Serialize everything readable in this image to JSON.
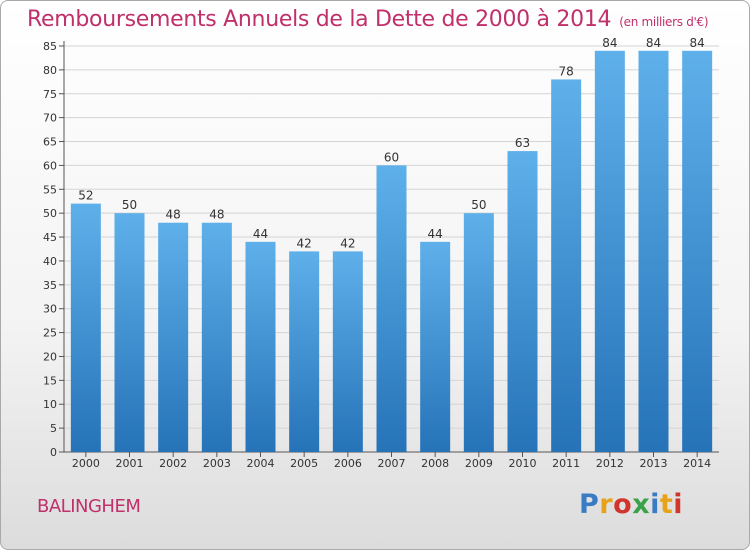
{
  "header": {
    "title": "Remboursements Annuels de la Dette de 2000 à 2014",
    "subtitle": "(en milliers d'€)"
  },
  "footer": {
    "place": "BALINGHEM",
    "logo": "Proxiti",
    "logo_colors": [
      "#3a7cc4",
      "#e8a21a",
      "#d2352b",
      "#3aa24a",
      "#3a7cc4",
      "#e8a21a",
      "#d2352b"
    ]
  },
  "chart_data": {
    "type": "bar",
    "categories": [
      "2000",
      "2001",
      "2002",
      "2003",
      "2004",
      "2005",
      "2006",
      "2007",
      "2008",
      "2009",
      "2010",
      "2011",
      "2012",
      "2013",
      "2014"
    ],
    "values": [
      52,
      50,
      48,
      48,
      44,
      42,
      42,
      60,
      44,
      50,
      63,
      78,
      84,
      84,
      84
    ],
    "ylim": [
      0,
      85
    ],
    "yticks": [
      0,
      5,
      10,
      15,
      20,
      25,
      30,
      35,
      40,
      45,
      50,
      55,
      60,
      65,
      70,
      75,
      80,
      85
    ],
    "grid": true,
    "bar_color_top": "#5eb0ea",
    "bar_color_bottom": "#2673b8"
  }
}
